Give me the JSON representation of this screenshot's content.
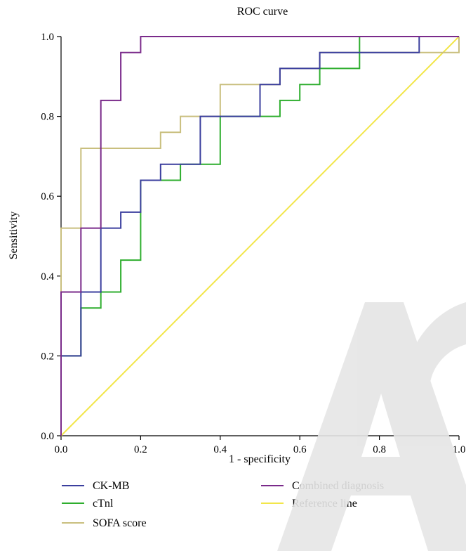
{
  "chart_data": {
    "type": "line",
    "title": "ROC curve",
    "xlabel": "1 - specificity",
    "ylabel": "Sensitivity",
    "xlim": [
      0,
      1
    ],
    "ylim": [
      0,
      1
    ],
    "xticks": [
      "0.0",
      "0.2",
      "0.4",
      "0.6",
      "0.8",
      "1.0"
    ],
    "yticks": [
      "0.0",
      "0.2",
      "0.4",
      "0.6",
      "0.8",
      "1.0"
    ],
    "grid": false,
    "legend_position": "bottom",
    "series": [
      {
        "name": "CK-MB",
        "color": "#3b3f9e",
        "points": [
          [
            0,
            0
          ],
          [
            0,
            0.2
          ],
          [
            0.05,
            0.2
          ],
          [
            0.05,
            0.36
          ],
          [
            0.1,
            0.36
          ],
          [
            0.1,
            0.52
          ],
          [
            0.15,
            0.52
          ],
          [
            0.15,
            0.56
          ],
          [
            0.2,
            0.56
          ],
          [
            0.2,
            0.64
          ],
          [
            0.25,
            0.64
          ],
          [
            0.25,
            0.68
          ],
          [
            0.35,
            0.68
          ],
          [
            0.35,
            0.8
          ],
          [
            0.5,
            0.8
          ],
          [
            0.5,
            0.88
          ],
          [
            0.55,
            0.88
          ],
          [
            0.55,
            0.92
          ],
          [
            0.65,
            0.92
          ],
          [
            0.65,
            0.96
          ],
          [
            0.9,
            0.96
          ],
          [
            0.9,
            1.0
          ],
          [
            1.0,
            1.0
          ]
        ]
      },
      {
        "name": "cTnl",
        "color": "#2eae2e",
        "points": [
          [
            0,
            0
          ],
          [
            0,
            0.2
          ],
          [
            0.05,
            0.2
          ],
          [
            0.05,
            0.32
          ],
          [
            0.1,
            0.32
          ],
          [
            0.1,
            0.36
          ],
          [
            0.15,
            0.36
          ],
          [
            0.15,
            0.44
          ],
          [
            0.2,
            0.44
          ],
          [
            0.2,
            0.64
          ],
          [
            0.3,
            0.64
          ],
          [
            0.3,
            0.68
          ],
          [
            0.4,
            0.68
          ],
          [
            0.4,
            0.8
          ],
          [
            0.55,
            0.8
          ],
          [
            0.55,
            0.84
          ],
          [
            0.6,
            0.84
          ],
          [
            0.6,
            0.88
          ],
          [
            0.65,
            0.88
          ],
          [
            0.65,
            0.92
          ],
          [
            0.75,
            0.92
          ],
          [
            0.75,
            1.0
          ],
          [
            1.0,
            1.0
          ]
        ]
      },
      {
        "name": "SOFA score",
        "color": "#c9bf7e",
        "points": [
          [
            0,
            0
          ],
          [
            0,
            0.52
          ],
          [
            0.05,
            0.52
          ],
          [
            0.05,
            0.72
          ],
          [
            0.25,
            0.72
          ],
          [
            0.25,
            0.76
          ],
          [
            0.3,
            0.76
          ],
          [
            0.3,
            0.8
          ],
          [
            0.4,
            0.8
          ],
          [
            0.4,
            0.88
          ],
          [
            0.55,
            0.88
          ],
          [
            0.55,
            0.92
          ],
          [
            0.65,
            0.92
          ],
          [
            0.65,
            0.96
          ],
          [
            1.0,
            0.96
          ],
          [
            1.0,
            1.0
          ]
        ]
      },
      {
        "name": "Combined diagnosis",
        "color": "#7a2a8a",
        "points": [
          [
            0,
            0
          ],
          [
            0,
            0.36
          ],
          [
            0.05,
            0.36
          ],
          [
            0.05,
            0.52
          ],
          [
            0.1,
            0.52
          ],
          [
            0.1,
            0.84
          ],
          [
            0.15,
            0.84
          ],
          [
            0.15,
            0.96
          ],
          [
            0.2,
            0.96
          ],
          [
            0.2,
            1.0
          ],
          [
            1.0,
            1.0
          ]
        ]
      },
      {
        "name": "Reference line",
        "color": "#f2e64a",
        "points": [
          [
            0,
            0
          ],
          [
            1,
            1
          ]
        ]
      }
    ]
  }
}
